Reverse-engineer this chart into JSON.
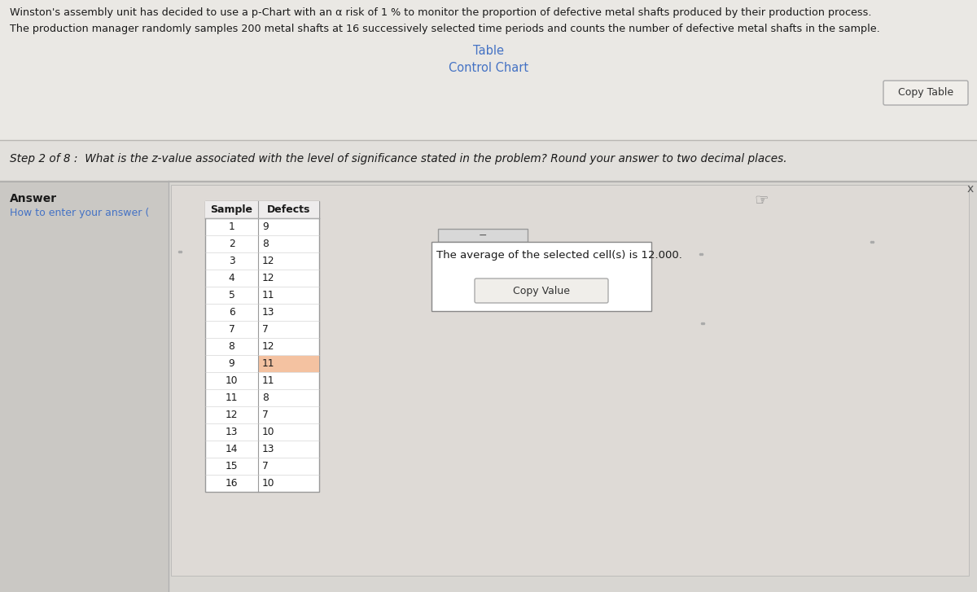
{
  "title_line1": "Winston's assembly unit has decided to use a p-Chart with an α risk of 1 % to monitor the proportion of defective metal shafts produced by their production process.",
  "title_line2": "The production manager randomly samples 200 metal shafts at 16 successively selected time periods and counts the number of defective metal shafts in the sample.",
  "tab_label": "Table",
  "chart_label": "Control Chart",
  "copy_table_btn": "Copy Table",
  "step_text": "Step 2 of 8 :  What is the z-value associated with the level of significance stated in the problem? Round your answer to two decimal places.",
  "answer_label": "Answer",
  "how_to_enter": "How to enter your answer (",
  "avg_text": "The average of the selected cell(s) is 12.000.",
  "copy_value_btn": "Copy Value",
  "samples": [
    1,
    2,
    3,
    4,
    5,
    6,
    7,
    8,
    9,
    10,
    11,
    12,
    13,
    14,
    15,
    16
  ],
  "defects": [
    9,
    8,
    12,
    12,
    11,
    13,
    7,
    12,
    11,
    11,
    8,
    7,
    10,
    13,
    7,
    10
  ],
  "highlighted_row": 9,
  "highlight_color": "#f4c2a1",
  "bg_color_top": "#e8e6e2",
  "bg_color_main": "#d8d6d2",
  "bg_color_left": "#d0ceca",
  "white": "#ffffff",
  "border_color": "#b0b0b0",
  "text_dark": "#222222",
  "text_medium": "#444444",
  "blue_link_color": "#4472c4",
  "header_col": "Sample",
  "header_def": "Defects",
  "step_bg": "#dddbd7",
  "inner_bg": "#c8c6c2",
  "inner_panel_bg": "#d4d2ce"
}
